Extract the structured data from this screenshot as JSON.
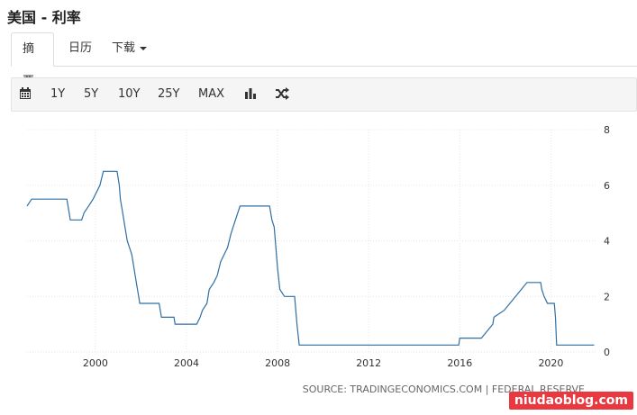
{
  "page": {
    "title": "美国 - 利率"
  },
  "tabs": [
    {
      "label": "摘要",
      "active": true
    },
    {
      "label": "日历",
      "active": false
    },
    {
      "label": "下载",
      "active": false
    }
  ],
  "toolbar": {
    "ranges": [
      "1Y",
      "5Y",
      "10Y",
      "25Y",
      "MAX"
    ],
    "icons": [
      "calendar-icon",
      "bar-chart-icon",
      "shuffle-icon"
    ]
  },
  "chart_data": {
    "type": "line",
    "title": "",
    "xlabel": "",
    "ylabel": "",
    "xlim": [
      1997.0,
      2022.0
    ],
    "ylim": [
      0,
      8
    ],
    "x_ticks": [
      2000,
      2004,
      2008,
      2012,
      2016,
      2020
    ],
    "y_ticks": [
      0,
      2,
      4,
      6,
      8
    ],
    "x_tick_labels": [
      "2000",
      "2004",
      "2008",
      "2012",
      "2016",
      "2020"
    ],
    "y_tick_labels": [
      "0",
      "2",
      "4",
      "6",
      "8"
    ],
    "grid": true,
    "line_color": "#2f6fa3",
    "source": "SOURCE: TRADINGECONOMICS.COM | FEDERAL RESERVE",
    "series": [
      {
        "points": [
          [
            1997.0,
            5.25
          ],
          [
            1997.2,
            5.5
          ],
          [
            1998.4,
            5.5
          ],
          [
            1998.75,
            5.5
          ],
          [
            1998.8,
            5.25
          ],
          [
            1998.85,
            5.0
          ],
          [
            1998.9,
            4.75
          ],
          [
            1999.4,
            4.75
          ],
          [
            1999.5,
            5.0
          ],
          [
            1999.7,
            5.25
          ],
          [
            1999.9,
            5.5
          ],
          [
            2000.05,
            5.75
          ],
          [
            2000.2,
            6.0
          ],
          [
            2000.35,
            6.5
          ],
          [
            2000.95,
            6.5
          ],
          [
            2001.05,
            6.0
          ],
          [
            2001.1,
            5.5
          ],
          [
            2001.2,
            5.0
          ],
          [
            2001.3,
            4.5
          ],
          [
            2001.4,
            4.0
          ],
          [
            2001.5,
            3.75
          ],
          [
            2001.6,
            3.5
          ],
          [
            2001.7,
            3.0
          ],
          [
            2001.8,
            2.5
          ],
          [
            2001.9,
            2.0
          ],
          [
            2001.95,
            1.75
          ],
          [
            2002.8,
            1.75
          ],
          [
            2002.9,
            1.25
          ],
          [
            2003.45,
            1.25
          ],
          [
            2003.5,
            1.0
          ],
          [
            2004.45,
            1.0
          ],
          [
            2004.6,
            1.25
          ],
          [
            2004.7,
            1.5
          ],
          [
            2004.9,
            1.75
          ],
          [
            2005.0,
            2.25
          ],
          [
            2005.2,
            2.5
          ],
          [
            2005.35,
            2.75
          ],
          [
            2005.5,
            3.25
          ],
          [
            2005.65,
            3.5
          ],
          [
            2005.8,
            3.75
          ],
          [
            2005.95,
            4.25
          ],
          [
            2006.15,
            4.75
          ],
          [
            2006.35,
            5.25
          ],
          [
            2007.65,
            5.25
          ],
          [
            2007.75,
            4.75
          ],
          [
            2007.85,
            4.5
          ],
          [
            2008.0,
            3.0
          ],
          [
            2008.1,
            2.25
          ],
          [
            2008.3,
            2.0
          ],
          [
            2008.75,
            2.0
          ],
          [
            2008.8,
            1.5
          ],
          [
            2008.85,
            1.0
          ],
          [
            2008.95,
            0.25
          ],
          [
            2015.95,
            0.25
          ],
          [
            2016.0,
            0.5
          ],
          [
            2016.95,
            0.5
          ],
          [
            2017.2,
            0.75
          ],
          [
            2017.45,
            1.0
          ],
          [
            2017.5,
            1.25
          ],
          [
            2017.95,
            1.5
          ],
          [
            2018.2,
            1.75
          ],
          [
            2018.45,
            2.0
          ],
          [
            2018.7,
            2.25
          ],
          [
            2018.95,
            2.5
          ],
          [
            2019.55,
            2.5
          ],
          [
            2019.6,
            2.25
          ],
          [
            2019.7,
            2.0
          ],
          [
            2019.85,
            1.75
          ],
          [
            2020.15,
            1.75
          ],
          [
            2020.2,
            1.25
          ],
          [
            2020.25,
            0.25
          ],
          [
            2021.9,
            0.25
          ]
        ]
      }
    ]
  },
  "watermark": {
    "text": "niudaoblog.com"
  }
}
